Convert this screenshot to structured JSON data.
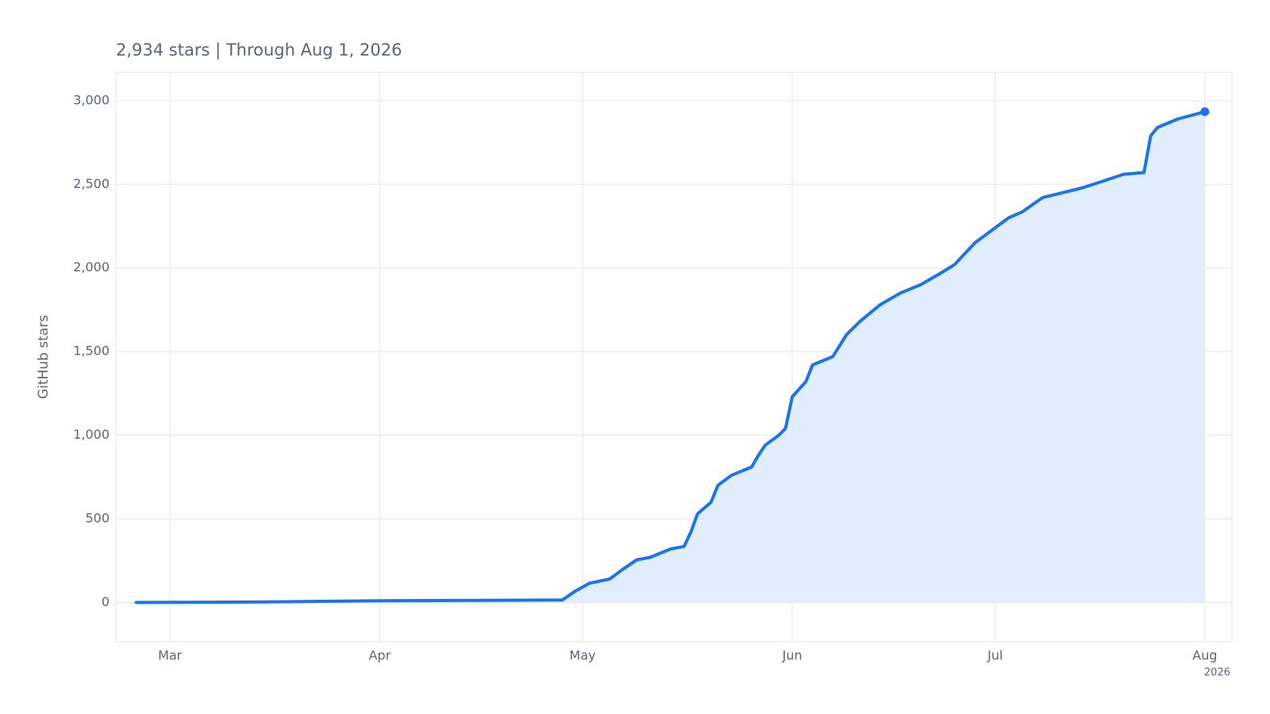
{
  "chart_data": {
    "type": "area",
    "title": "2,934 stars | Through Aug 1, 2026",
    "ylabel": "GitHub stars",
    "x_year": "2026",
    "color": "#1a73f0",
    "fill_color": "#e2eefd",
    "grid": true,
    "x": [
      "2026-02-24",
      "2026-03-15",
      "2026-04-01",
      "2026-04-28",
      "2026-04-30",
      "2026-05-02",
      "2026-05-05",
      "2026-05-07",
      "2026-05-09",
      "2026-05-11",
      "2026-05-14",
      "2026-05-16",
      "2026-05-17",
      "2026-05-18",
      "2026-05-20",
      "2026-05-21",
      "2026-05-23",
      "2026-05-26",
      "2026-05-27",
      "2026-05-28",
      "2026-05-30",
      "2026-05-31",
      "2026-06-01",
      "2026-06-03",
      "2026-06-04",
      "2026-06-07",
      "2026-06-09",
      "2026-06-11",
      "2026-06-14",
      "2026-06-17",
      "2026-06-20",
      "2026-06-23",
      "2026-06-25",
      "2026-06-28",
      "2026-07-01",
      "2026-07-03",
      "2026-07-05",
      "2026-07-08",
      "2026-07-11",
      "2026-07-14",
      "2026-07-17",
      "2026-07-20",
      "2026-07-23",
      "2026-07-24",
      "2026-07-25",
      "2026-07-28",
      "2026-08-01"
    ],
    "values": [
      0,
      3,
      10,
      15,
      70,
      115,
      140,
      200,
      255,
      270,
      320,
      335,
      420,
      530,
      600,
      700,
      760,
      810,
      880,
      940,
      1000,
      1040,
      1230,
      1320,
      1420,
      1470,
      1600,
      1680,
      1780,
      1850,
      1900,
      1970,
      2020,
      2150,
      2240,
      2300,
      2335,
      2420,
      2450,
      2480,
      2520,
      2560,
      2570,
      2790,
      2840,
      2890,
      2934
    ],
    "xlim": [
      "2026-02-21",
      "2026-08-05"
    ],
    "xticks": [
      {
        "value": "2026-03-01",
        "label": "Mar"
      },
      {
        "value": "2026-04-01",
        "label": "Apr"
      },
      {
        "value": "2026-05-01",
        "label": "May"
      },
      {
        "value": "2026-06-01",
        "label": "Jun"
      },
      {
        "value": "2026-07-01",
        "label": "Jul"
      },
      {
        "value": "2026-08-01",
        "label": "Aug"
      }
    ],
    "ylim": [
      -235,
      3170
    ],
    "yticks": [
      0,
      500,
      {
        "value": 1000,
        "label": "1,000"
      },
      {
        "value": 1500,
        "label": "1,500"
      },
      {
        "value": 2000,
        "label": "2,000"
      },
      {
        "value": 2500,
        "label": "2,500"
      },
      {
        "value": 3000,
        "label": "3,000"
      }
    ]
  }
}
